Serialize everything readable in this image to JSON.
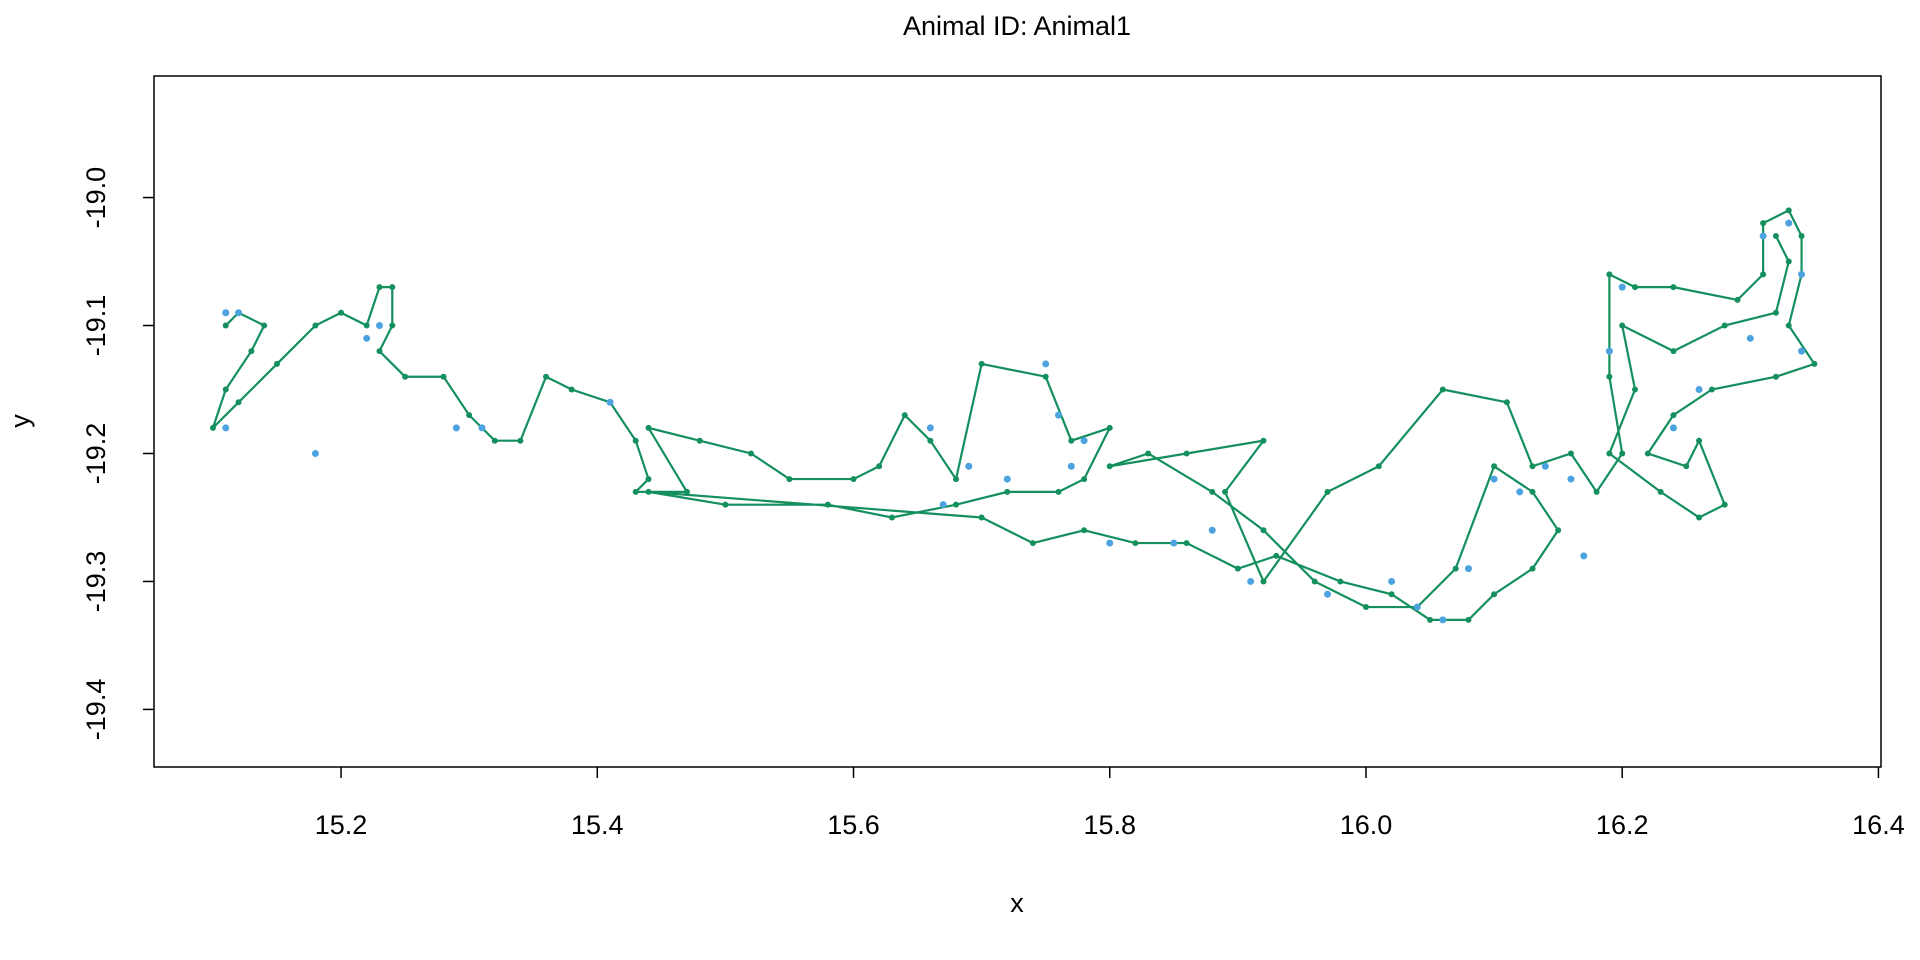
{
  "chart_data": {
    "type": "line",
    "title": "Animal ID: Animal1",
    "x_label": "x",
    "y_label": "y",
    "xlim": [
      15.054,
      16.402
    ],
    "ylim": [
      -19.445,
      -18.905
    ],
    "xticks": [
      15.2,
      15.4,
      15.6,
      {
        "value": 16,
        "label": "16.0"
      },
      15.8,
      16.2,
      16.4
    ],
    "yticks": [
      {
        "value": -19,
        "label": "-19.0"
      },
      -19.1,
      -19.2,
      -19.3,
      -19.4
    ],
    "series": [
      {
        "type": "line",
        "color": "#148f5e",
        "x": [
          15.11,
          15.12,
          15.14,
          15.13,
          15.11,
          15.1,
          15.12,
          15.15,
          15.18,
          15.2,
          15.22,
          15.23,
          15.24,
          15.24,
          15.23,
          15.25,
          15.28,
          15.3,
          15.32,
          15.34,
          15.36,
          15.38,
          15.41,
          15.43,
          15.44,
          15.43,
          15.47,
          15.44,
          15.48,
          15.52,
          15.55,
          15.6,
          15.62,
          15.64,
          15.66,
          15.68,
          15.7,
          15.75,
          15.77,
          15.8,
          15.78,
          15.76,
          15.72,
          15.68,
          15.63,
          15.58,
          15.5,
          15.44,
          15.7,
          15.74,
          15.78,
          15.82,
          15.86,
          15.9,
          15.93,
          15.98,
          16.02,
          16.05,
          16.08,
          16.1,
          16.13,
          16.15,
          16.13,
          16.1,
          16.07,
          16.04,
          16.0,
          15.96,
          15.92,
          15.88,
          15.83,
          15.8,
          15.86,
          15.92,
          15.89,
          15.92,
          15.97,
          16.01,
          16.06,
          16.11,
          16.13,
          16.16,
          16.18,
          16.2,
          16.19,
          16.19,
          16.21,
          16.24,
          16.29,
          16.31,
          16.31,
          16.33,
          16.34,
          16.34,
          16.33,
          16.35,
          16.32,
          16.27,
          16.24,
          16.22,
          16.25,
          16.26,
          16.28,
          16.26,
          16.23,
          16.19,
          16.21,
          16.2,
          16.24,
          16.28,
          16.32,
          16.33,
          16.32
        ],
        "values": [
          -19.1,
          -19.09,
          -19.1,
          -19.12,
          -19.15,
          -19.18,
          -19.16,
          -19.13,
          -19.1,
          -19.09,
          -19.1,
          -19.07,
          -19.07,
          -19.1,
          -19.12,
          -19.14,
          -19.14,
          -19.17,
          -19.19,
          -19.19,
          -19.14,
          -19.15,
          -19.16,
          -19.19,
          -19.22,
          -19.23,
          -19.23,
          -19.18,
          -19.19,
          -19.2,
          -19.22,
          -19.22,
          -19.21,
          -19.17,
          -19.19,
          -19.22,
          -19.13,
          -19.14,
          -19.19,
          -19.18,
          -19.22,
          -19.23,
          -19.23,
          -19.24,
          -19.25,
          -19.24,
          -19.24,
          -19.23,
          -19.25,
          -19.27,
          -19.26,
          -19.27,
          -19.27,
          -19.29,
          -19.28,
          -19.3,
          -19.31,
          -19.33,
          -19.33,
          -19.31,
          -19.29,
          -19.26,
          -19.23,
          -19.21,
          -19.29,
          -19.32,
          -19.32,
          -19.3,
          -19.26,
          -19.23,
          -19.2,
          -19.21,
          -19.2,
          -19.19,
          -19.23,
          -19.3,
          -19.23,
          -19.21,
          -19.15,
          -19.16,
          -19.21,
          -19.2,
          -19.23,
          -19.2,
          -19.14,
          -19.06,
          -19.07,
          -19.07,
          -19.08,
          -19.06,
          -19.02,
          -19.01,
          -19.03,
          -19.06,
          -19.1,
          -19.13,
          -19.14,
          -19.15,
          -19.17,
          -19.2,
          -19.21,
          -19.19,
          -19.24,
          -19.25,
          -19.23,
          -19.2,
          -19.15,
          -19.1,
          -19.12,
          -19.1,
          -19.09,
          -19.05,
          -19.03
        ]
      },
      {
        "type": "scatter",
        "color": "#4da3e0",
        "x": [
          15.11,
          15.12,
          15.11,
          15.18,
          15.22,
          15.23,
          15.29,
          15.31,
          15.41,
          15.66,
          15.67,
          15.69,
          15.72,
          15.75,
          15.76,
          15.77,
          15.78,
          15.8,
          15.85,
          15.88,
          15.91,
          15.97,
          16.02,
          16.04,
          16.06,
          16.08,
          16.1,
          16.12,
          16.14,
          16.16,
          16.17,
          16.19,
          16.2,
          16.24,
          16.26,
          16.3,
          16.31,
          16.33,
          16.34,
          16.34
        ],
        "values": [
          -19.09,
          -19.09,
          -19.18,
          -19.2,
          -19.11,
          -19.1,
          -19.18,
          -19.18,
          -19.16,
          -19.18,
          -19.24,
          -19.21,
          -19.22,
          -19.13,
          -19.17,
          -19.21,
          -19.19,
          -19.27,
          -19.27,
          -19.26,
          -19.3,
          -19.31,
          -19.3,
          -19.32,
          -19.33,
          -19.29,
          -19.22,
          -19.23,
          -19.21,
          -19.22,
          -19.28,
          -19.12,
          -19.07,
          -19.18,
          -19.15,
          -19.11,
          -19.03,
          -19.02,
          -19.06,
          -19.12
        ]
      }
    ]
  }
}
